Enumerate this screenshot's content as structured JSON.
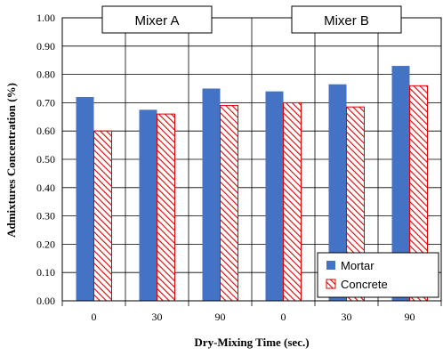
{
  "chart_data": {
    "type": "bar",
    "categories": [
      "0",
      "30",
      "90",
      "0",
      "30",
      "90"
    ],
    "groups": [
      {
        "label": "Mixer A"
      },
      {
        "label": "Mixer B"
      }
    ],
    "series": [
      {
        "name": "Mortar",
        "values": [
          0.72,
          0.675,
          0.75,
          0.74,
          0.765,
          0.83
        ],
        "color": "#4472C4",
        "pattern": "solid"
      },
      {
        "name": "Concrete",
        "values": [
          0.6,
          0.66,
          0.69,
          0.7,
          0.685,
          0.76
        ],
        "color": "#E00000",
        "pattern": "diagonal-hatch"
      }
    ],
    "yticks": [
      "0.00",
      "0.10",
      "0.20",
      "0.30",
      "0.40",
      "0.50",
      "0.60",
      "0.70",
      "0.80",
      "0.90",
      "1.00"
    ],
    "xlabel": "Dry-Mixing Time (sec.)",
    "ylabel": "Admixtures Concentration (%)",
    "ylim": [
      0,
      1.0
    ],
    "grid": true,
    "legend": "bottom-right"
  }
}
